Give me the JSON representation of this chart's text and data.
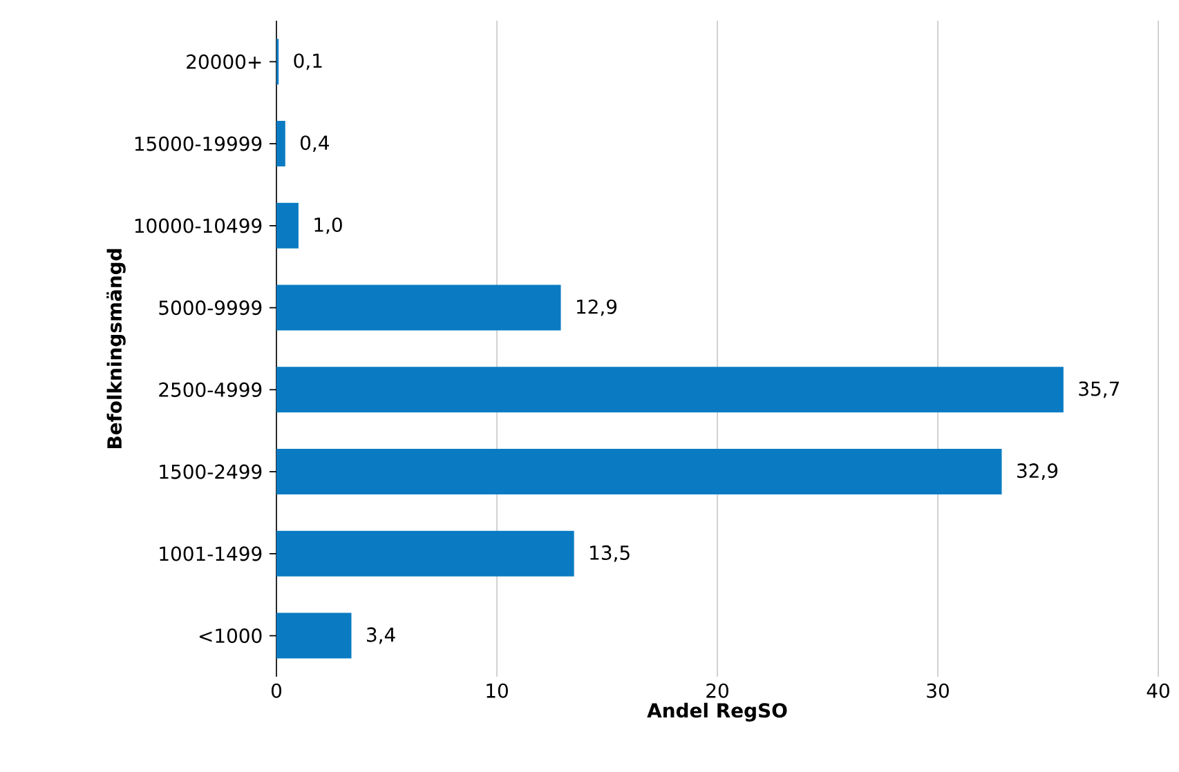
{
  "chart_data": {
    "type": "bar",
    "orientation": "horizontal",
    "xlabel": "Andel RegSO",
    "ylabel": "Befolkningsmängd",
    "categories": [
      "20000+",
      "15000-19999",
      "10000-10499",
      "5000-9999",
      "2500-4999",
      "1500-2499",
      "1001-1499",
      "<1000"
    ],
    "values": [
      0.1,
      0.4,
      1.0,
      12.9,
      35.7,
      32.9,
      13.5,
      3.4
    ],
    "value_labels": [
      "0,1",
      "0,4",
      "1,0",
      "12,9",
      "35,7",
      "32,9",
      "13,5",
      "3,4"
    ],
    "color": "#0a7bc2",
    "xlim": [
      0,
      40
    ],
    "xticks": [
      0,
      10,
      20,
      30,
      40
    ],
    "grid": "x"
  }
}
